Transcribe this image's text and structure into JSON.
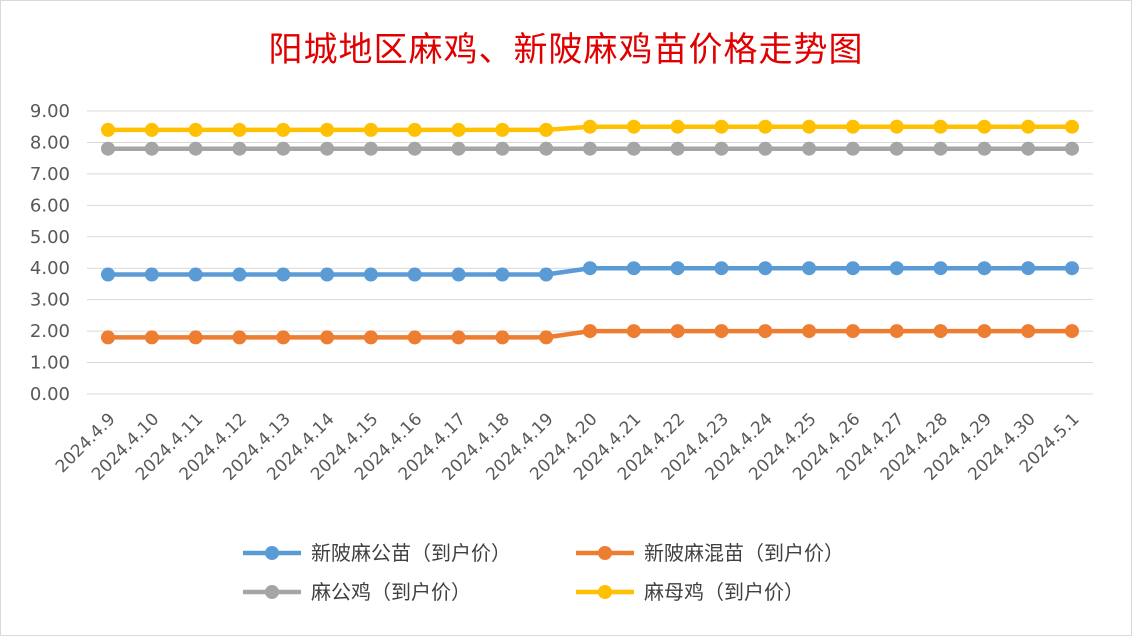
{
  "chart_data": {
    "type": "line",
    "title": "阳城地区麻鸡、新陂麻鸡苗价格走势图",
    "categories": [
      "2024.4.9",
      "2024.4.10",
      "2024.4.11",
      "2024.4.12",
      "2024.4.13",
      "2024.4.14",
      "2024.4.15",
      "2024.4.16",
      "2024.4.17",
      "2024.4.18",
      "2024.4.19",
      "2024.4.20",
      "2024.4.21",
      "2024.4.22",
      "2024.4.23",
      "2024.4.24",
      "2024.4.25",
      "2024.4.26",
      "2024.4.27",
      "2024.4.28",
      "2024.4.29",
      "2024.4.30",
      "2024.5.1"
    ],
    "ylim": [
      0,
      9
    ],
    "yticks": [
      "0.00",
      "1.00",
      "2.00",
      "3.00",
      "4.00",
      "5.00",
      "6.00",
      "7.00",
      "8.00",
      "9.00"
    ],
    "grid": true,
    "legend_position": "bottom",
    "series": [
      {
        "name": "新陂麻公苗（到户价）",
        "color": "#5b9bd5",
        "values": [
          3.8,
          3.8,
          3.8,
          3.8,
          3.8,
          3.8,
          3.8,
          3.8,
          3.8,
          3.8,
          3.8,
          4.0,
          4.0,
          4.0,
          4.0,
          4.0,
          4.0,
          4.0,
          4.0,
          4.0,
          4.0,
          4.0,
          4.0
        ]
      },
      {
        "name": "新陂麻混苗（到户价）",
        "color": "#ed7d31",
        "values": [
          1.8,
          1.8,
          1.8,
          1.8,
          1.8,
          1.8,
          1.8,
          1.8,
          1.8,
          1.8,
          1.8,
          2.0,
          2.0,
          2.0,
          2.0,
          2.0,
          2.0,
          2.0,
          2.0,
          2.0,
          2.0,
          2.0,
          2.0
        ]
      },
      {
        "name": "麻公鸡（到户价）",
        "color": "#a5a5a5",
        "values": [
          7.8,
          7.8,
          7.8,
          7.8,
          7.8,
          7.8,
          7.8,
          7.8,
          7.8,
          7.8,
          7.8,
          7.8,
          7.8,
          7.8,
          7.8,
          7.8,
          7.8,
          7.8,
          7.8,
          7.8,
          7.8,
          7.8,
          7.8
        ]
      },
      {
        "name": "麻母鸡（到户价）",
        "color": "#ffc000",
        "values": [
          8.4,
          8.4,
          8.4,
          8.4,
          8.4,
          8.4,
          8.4,
          8.4,
          8.4,
          8.4,
          8.4,
          8.5,
          8.5,
          8.5,
          8.5,
          8.5,
          8.5,
          8.5,
          8.5,
          8.5,
          8.5,
          8.5,
          8.5
        ]
      }
    ]
  }
}
